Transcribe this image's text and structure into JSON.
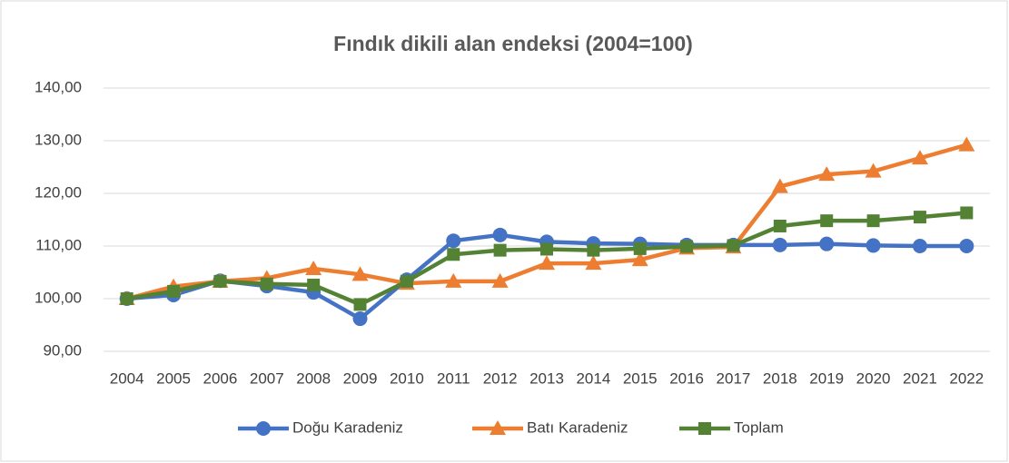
{
  "chart_data": {
    "type": "line",
    "title": "Fındık dikili alan endeksi (2004=100)",
    "categories": [
      "2004",
      "2005",
      "2006",
      "2007",
      "2008",
      "2009",
      "2010",
      "2011",
      "2012",
      "2013",
      "2014",
      "2015",
      "2016",
      "2017",
      "2018",
      "2019",
      "2020",
      "2021",
      "2022"
    ],
    "series": [
      {
        "name": "Doğu Karadeniz",
        "color": "#4472c4",
        "marker": "circle",
        "values": [
          100,
          100.7,
          103.4,
          102.4,
          101.2,
          96.2,
          103.6,
          111,
          112.1,
          110.8,
          110.5,
          110.4,
          110.2,
          110.2,
          110.2,
          110.4,
          110.1,
          110,
          110
        ]
      },
      {
        "name": "Batı Karadeniz",
        "color": "#ed7d31",
        "marker": "triangle",
        "values": [
          100,
          102.3,
          103.3,
          103.9,
          105.7,
          104.6,
          102.9,
          103.3,
          103.3,
          106.7,
          106.7,
          107.4,
          109.6,
          109.8,
          121.3,
          123.6,
          124.2,
          126.7,
          129.2
        ]
      },
      {
        "name": "Toplam",
        "color": "#548235",
        "marker": "square",
        "values": [
          100,
          101.4,
          103.3,
          102.8,
          102.6,
          98.9,
          103.3,
          108.4,
          109.2,
          109.4,
          109.2,
          109.5,
          109.9,
          110.1,
          113.8,
          114.8,
          114.8,
          115.5,
          116.3
        ]
      }
    ],
    "ylim": [
      90,
      140
    ],
    "yticks": [
      {
        "value": 90,
        "label": "90,00"
      },
      {
        "value": 100,
        "label": "100,00"
      },
      {
        "value": 110,
        "label": "110,00"
      },
      {
        "value": 120,
        "label": "120,00"
      },
      {
        "value": 130,
        "label": "130,00"
      },
      {
        "value": 140,
        "label": "140,00"
      }
    ],
    "grid": true,
    "legend": "bottom"
  }
}
